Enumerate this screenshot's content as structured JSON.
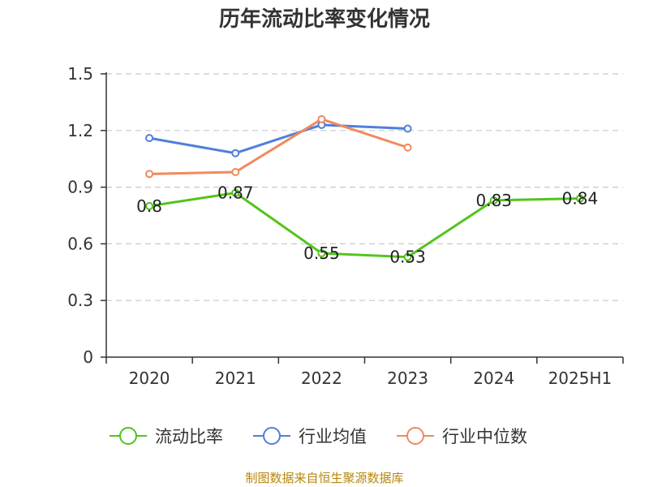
{
  "chart_data": {
    "type": "line",
    "title": "历年流动比率变化情况",
    "categories": [
      "2020",
      "2021",
      "2022",
      "2023",
      "2024",
      "2025H1"
    ],
    "ylim": [
      0,
      1.5
    ],
    "yticks": [
      "0",
      "0.3",
      "0.6",
      "0.9",
      "1.2",
      "1.5"
    ],
    "grid": true,
    "legend_position": "bottom",
    "series": [
      {
        "name": "流动比率",
        "color": "#52c41a",
        "values": [
          0.8,
          0.87,
          0.55,
          0.53,
          0.83,
          0.84
        ],
        "labels": [
          "0.8",
          "0.87",
          "0.55",
          "0.53",
          "0.83",
          "0.84"
        ],
        "show_labels": true
      },
      {
        "name": "行业均值",
        "color": "#4f7fdb",
        "values": [
          1.16,
          1.08,
          1.23,
          1.21,
          null,
          null
        ],
        "show_labels": false
      },
      {
        "name": "行业中位数",
        "color": "#f08a5d",
        "values": [
          0.97,
          0.98,
          1.26,
          1.11,
          null,
          null
        ],
        "show_labels": false
      }
    ]
  },
  "source": "制图数据来自恒生聚源数据库"
}
